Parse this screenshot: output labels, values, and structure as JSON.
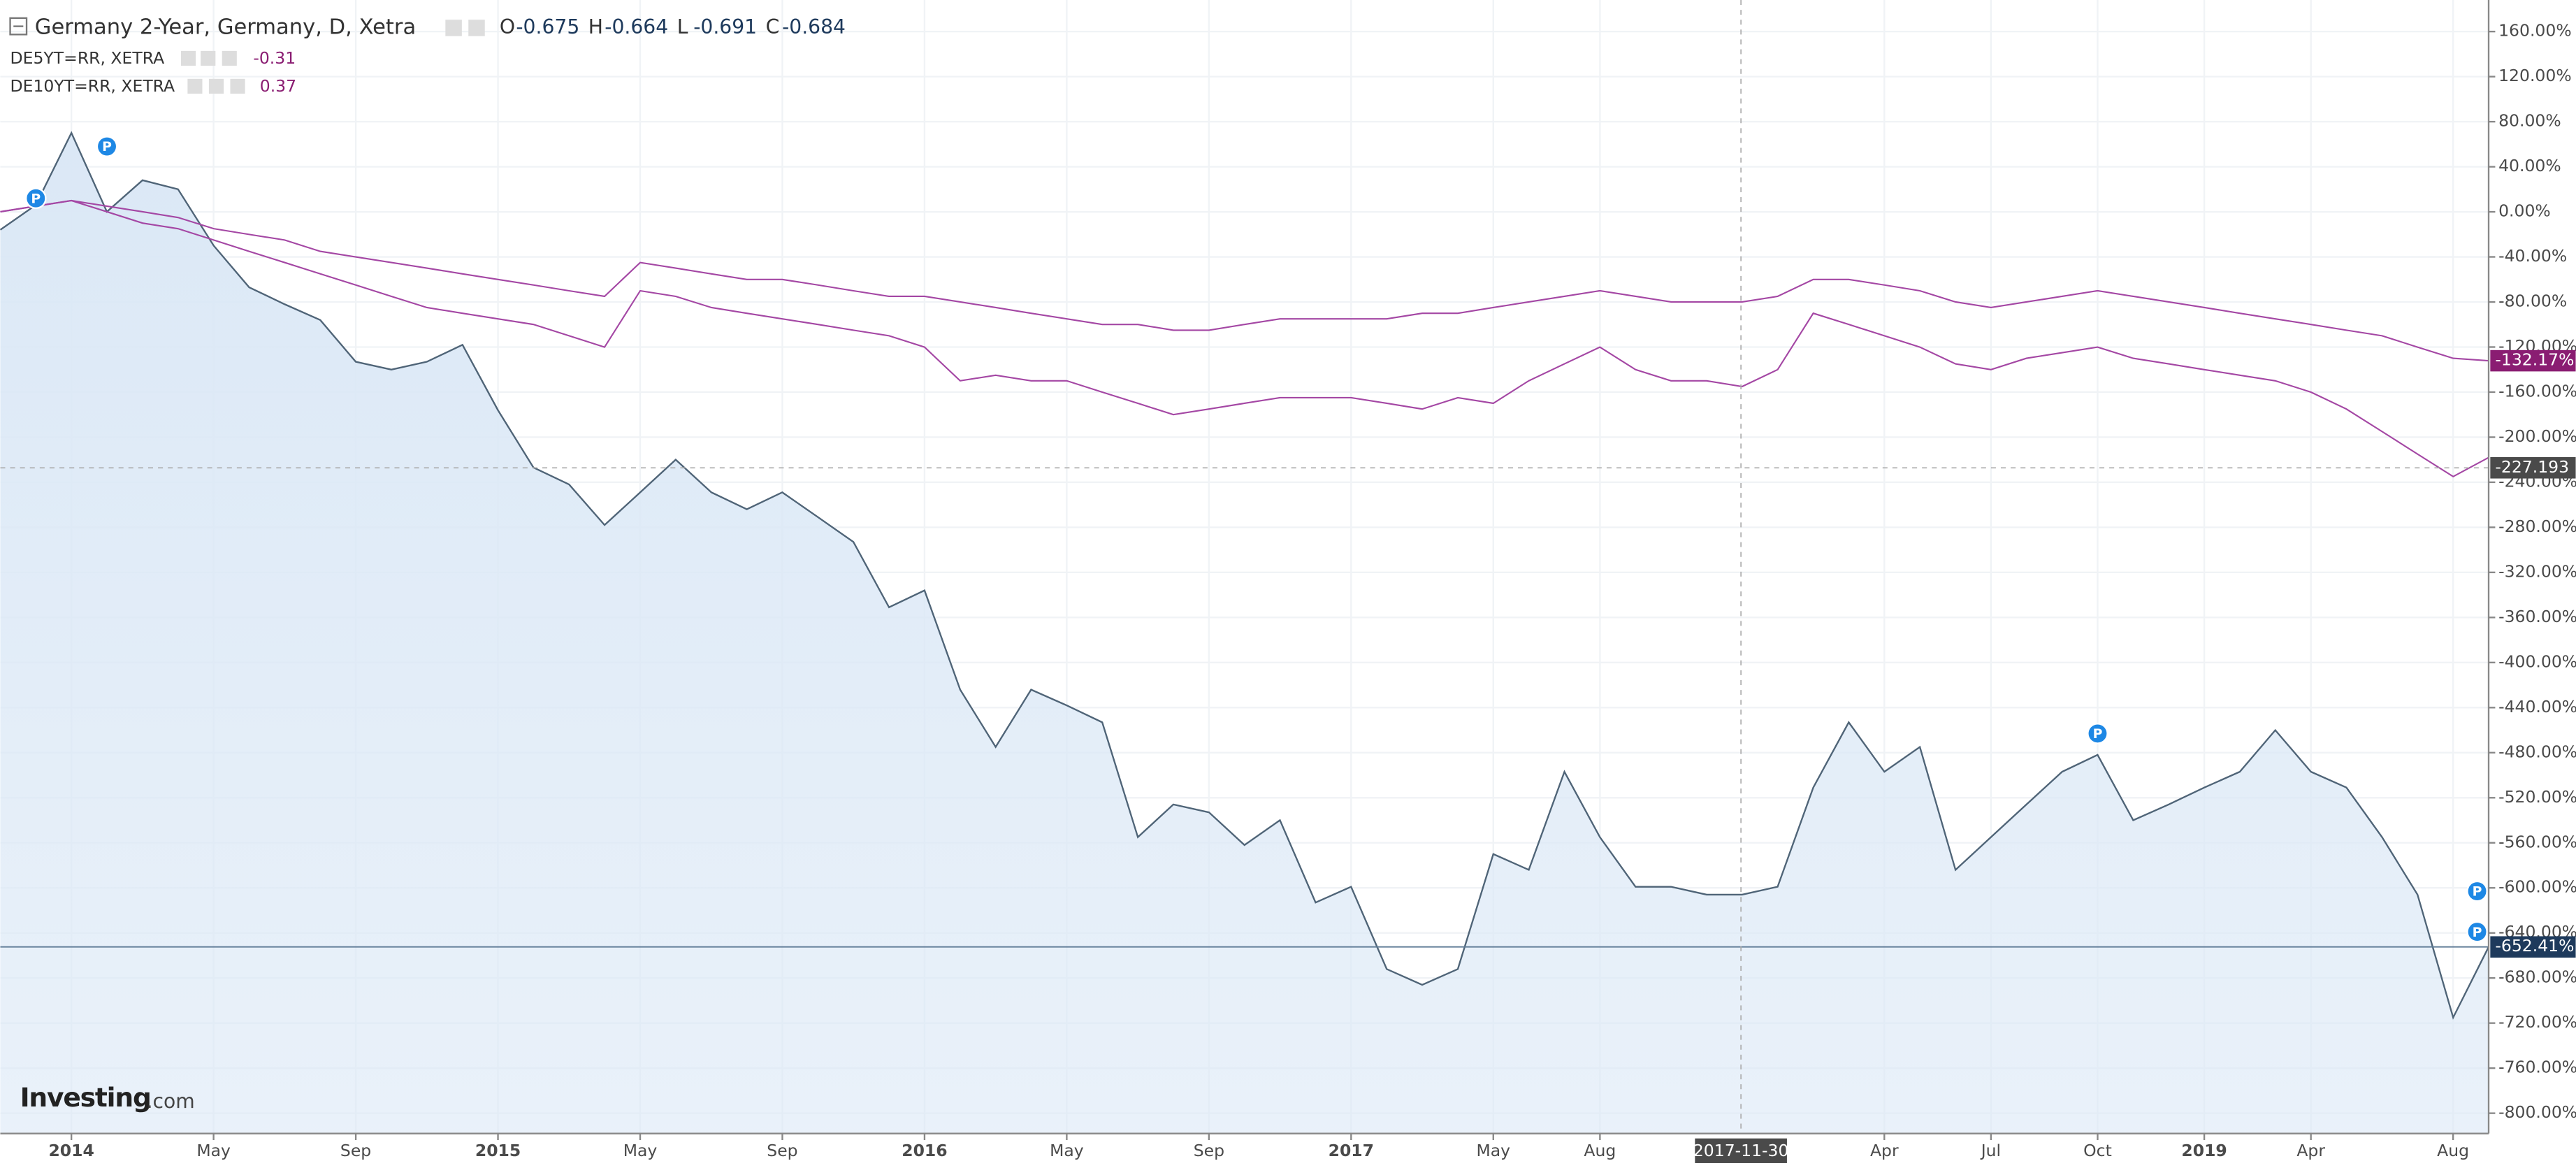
{
  "chart_data": {
    "type": "line",
    "ohlc": [
      {
        "label": "O",
        "value": -0.675
      },
      {
        "label": "H",
        "value": -0.664
      },
      {
        "label": "L",
        "value": -0.691
      },
      {
        "label": "C",
        "value": -0.684
      }
    ],
    "x": [
      "2013-11",
      "2013-12",
      "2014-01",
      "2014-02",
      "2014-03",
      "2014-04",
      "2014-05",
      "2014-06",
      "2014-07",
      "2014-08",
      "2014-09",
      "2014-10",
      "2014-11",
      "2014-12",
      "2015-01",
      "2015-02",
      "2015-03",
      "2015-04",
      "2015-05",
      "2015-06",
      "2015-07",
      "2015-08",
      "2015-09",
      "2015-10",
      "2015-11",
      "2015-12",
      "2016-01",
      "2016-02",
      "2016-03",
      "2016-04",
      "2016-05",
      "2016-06",
      "2016-07",
      "2016-08",
      "2016-09",
      "2016-10",
      "2016-11",
      "2016-12",
      "2017-01",
      "2017-02",
      "2017-03",
      "2017-04",
      "2017-05",
      "2017-06",
      "2017-07",
      "2017-08",
      "2017-09",
      "2017-10",
      "2017-11",
      "2017-12",
      "2018-01",
      "2018-02",
      "2018-03",
      "2018-04",
      "2018-05",
      "2018-06",
      "2018-07",
      "2018-08",
      "2018-09",
      "2018-10",
      "2018-11",
      "2018-12",
      "2019-01",
      "2019-02",
      "2019-03",
      "2019-04",
      "2019-05",
      "2019-06",
      "2019-07",
      "2019-08",
      "2019-09"
    ],
    "series": [
      {
        "name": "Germany 2-Year, Germany, D, Xetra",
        "color": "#4f6477",
        "fill": "#dbe8f6",
        "price_tag": "-652.41%",
        "values": [
          -16,
          6,
          70,
          0,
          28,
          20,
          -30,
          -67,
          -82,
          -96,
          -133,
          -140,
          -133,
          -118,
          -176,
          -227,
          -242,
          -278,
          -249,
          -220,
          -249,
          -264,
          -249,
          -271,
          -293,
          -351,
          -336,
          -424,
          -475,
          -424,
          -438,
          -453,
          -555,
          -526,
          -533,
          -562,
          -540,
          -613,
          -599,
          -672,
          -686,
          -672,
          -570,
          -584,
          -497,
          -555,
          -599,
          -599,
          -606,
          -606,
          -599,
          -511,
          -453,
          -497,
          -475,
          -584,
          -555,
          -526,
          -497,
          -482,
          -540,
          -526,
          -511,
          -497,
          -460,
          -497,
          -511,
          -555,
          -606,
          -715,
          -652.41
        ]
      },
      {
        "name": "DE5YT=RR, XETRA",
        "legend_value": -0.31,
        "color": "#a447a4",
        "tag_color": "#8a1d72",
        "price_tag": "-132.17%",
        "values": [
          0,
          5,
          10,
          5,
          0,
          -5,
          -15,
          -20,
          -25,
          -35,
          -40,
          -45,
          -50,
          -55,
          -60,
          -65,
          -70,
          -75,
          -45,
          -50,
          -55,
          -60,
          -60,
          -65,
          -70,
          -75,
          -75,
          -80,
          -85,
          -90,
          -95,
          -100,
          -100,
          -105,
          -105,
          -100,
          -95,
          -95,
          -95,
          -95,
          -90,
          -90,
          -85,
          -80,
          -75,
          -70,
          -75,
          -80,
          -80,
          -80,
          -75,
          -60,
          -60,
          -65,
          -70,
          -80,
          -85,
          -80,
          -75,
          -70,
          -75,
          -80,
          -85,
          -90,
          -95,
          -100,
          -105,
          -110,
          -120,
          -130,
          -132.17
        ]
      },
      {
        "name": "DE10YT=RR, XETRA",
        "legend_value": 0.37,
        "color": "#a447a4",
        "values": [
          0,
          5,
          10,
          0,
          -10,
          -15,
          -25,
          -35,
          -45,
          -55,
          -65,
          -75,
          -85,
          -90,
          -95,
          -100,
          -110,
          -120,
          -70,
          -75,
          -85,
          -90,
          -95,
          -100,
          -105,
          -110,
          -120,
          -150,
          -145,
          -150,
          -150,
          -160,
          -170,
          -180,
          -175,
          -170,
          -165,
          -165,
          -165,
          -170,
          -175,
          -165,
          -170,
          -150,
          -135,
          -120,
          -140,
          -150,
          -150,
          -155,
          -140,
          -90,
          -100,
          -110,
          -120,
          -135,
          -140,
          -130,
          -125,
          -120,
          -130,
          -135,
          -140,
          -145,
          -150,
          -160,
          -175,
          -195,
          -215,
          -235,
          -218
        ]
      }
    ],
    "events": [
      {
        "x": "2013-12",
        "y": 12,
        "label": "P"
      },
      {
        "x": "2014-02",
        "y": 58,
        "label": "P"
      },
      {
        "x": "2018-10",
        "y": -463,
        "label": "P"
      },
      {
        "x": "2019-09",
        "y": -603,
        "label": "P"
      },
      {
        "x": "2019-09",
        "y": -639,
        "label": "P"
      }
    ],
    "crosshair": {
      "x": "2017-11-30",
      "y": -227.193
    },
    "xlim": [
      "2013-11",
      "2019-09"
    ],
    "ylim": [
      -818,
      188
    ],
    "xticks": [
      {
        "value": "2014-01",
        "label": "2014"
      },
      {
        "value": "2014-05",
        "label": "May"
      },
      {
        "value": "2014-09",
        "label": "Sep"
      },
      {
        "value": "2015-01",
        "label": "2015"
      },
      {
        "value": "2015-05",
        "label": "May"
      },
      {
        "value": "2015-09",
        "label": "Sep"
      },
      {
        "value": "2016-01",
        "label": "2016"
      },
      {
        "value": "2016-05",
        "label": "May"
      },
      {
        "value": "2016-09",
        "label": "Sep"
      },
      {
        "value": "2017-01",
        "label": "2017"
      },
      {
        "value": "2017-05",
        "label": "May"
      },
      {
        "value": "2017-08",
        "label": "Aug"
      },
      {
        "value": "2018-04",
        "label": "Apr"
      },
      {
        "value": "2018-07",
        "label": "Jul"
      },
      {
        "value": "2018-10",
        "label": "Oct"
      },
      {
        "value": "2019-01",
        "label": "2019"
      },
      {
        "value": "2019-04",
        "label": "Apr"
      },
      {
        "value": "2019-08",
        "label": "Aug"
      }
    ],
    "yticks": [
      {
        "value": 160,
        "label": "160.00%"
      },
      {
        "value": 120,
        "label": "120.00%"
      },
      {
        "value": 80,
        "label": "80.00%"
      },
      {
        "value": 40,
        "label": "40.00%"
      },
      {
        "value": 0,
        "label": "0.00%"
      },
      {
        "value": -40,
        "label": "-40.00%"
      },
      {
        "value": -80,
        "label": "-80.00%"
      },
      {
        "value": -120,
        "label": "-120.00%"
      },
      {
        "value": -160,
        "label": "-160.00%"
      },
      {
        "value": -200,
        "label": "-200.00%"
      },
      {
        "value": -240,
        "label": "-240.00%"
      },
      {
        "value": -280,
        "label": "-280.00%"
      },
      {
        "value": -320,
        "label": "-320.00%"
      },
      {
        "value": -360,
        "label": "-360.00%"
      },
      {
        "value": -400,
        "label": "-400.00%"
      },
      {
        "value": -440,
        "label": "-440.00%"
      },
      {
        "value": -480,
        "label": "-480.00%"
      },
      {
        "value": -520,
        "label": "-520.00%"
      },
      {
        "value": -560,
        "label": "-560.00%"
      },
      {
        "value": -600,
        "label": "-600.00%"
      },
      {
        "value": -640,
        "label": "-640.00%"
      },
      {
        "value": -680,
        "label": "-680.00%"
      },
      {
        "value": -720,
        "label": "-720.00%"
      },
      {
        "value": -760,
        "label": "-760.00%"
      },
      {
        "value": -800,
        "label": "-800.00%"
      }
    ],
    "grid": true,
    "logo": {
      "brand": "Investing",
      "suffix": ".com"
    }
  }
}
